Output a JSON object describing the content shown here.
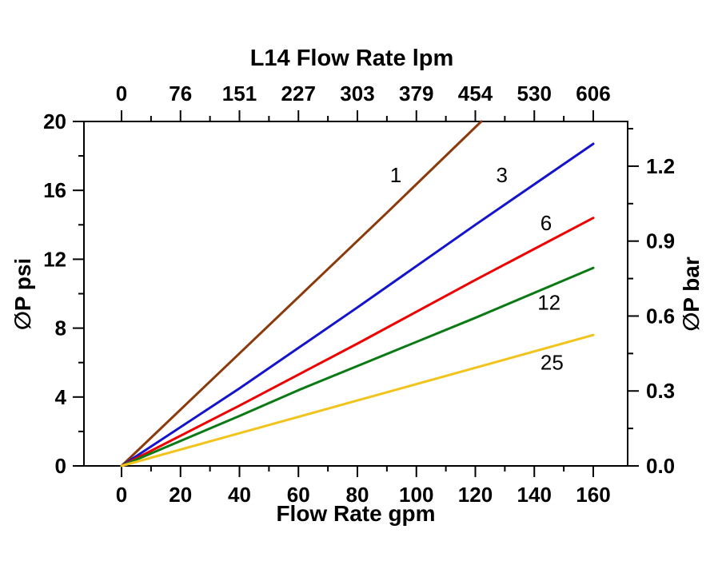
{
  "chart_data": {
    "type": "line",
    "title": "L14  Flow Rate lpm",
    "xlabel_bottom": "Flow Rate gpm",
    "ylabel_left": "∅P psi",
    "ylabel_right": "∅P bar",
    "grid": false,
    "legend": "inline-labels-on-lines",
    "x_axis_bottom": {
      "unit": "gpm",
      "range": [
        0,
        160
      ],
      "ticks": [
        0,
        20,
        40,
        60,
        80,
        100,
        120,
        140,
        160
      ],
      "minor_ticks": [
        10,
        30,
        50,
        70,
        90,
        110,
        130,
        150
      ]
    },
    "x_axis_top": {
      "unit": "lpm",
      "tick_labels": [
        "0",
        "76",
        "151",
        "227",
        "303",
        "379",
        "454",
        "530",
        "606"
      ],
      "tick_positions_gpm": [
        0,
        20,
        40,
        60,
        80,
        100,
        120,
        140,
        160
      ]
    },
    "y_axis_left": {
      "unit": "psi",
      "range": [
        0,
        20
      ],
      "ticks": [
        0,
        4,
        8,
        12,
        16,
        20
      ],
      "minor_ticks": [
        2,
        6,
        10,
        14,
        18
      ]
    },
    "y_axis_right": {
      "unit": "bar",
      "tick_labels": [
        "0.0",
        "0.3",
        "0.6",
        "0.9",
        "1.2"
      ],
      "tick_values_bar": [
        0.0,
        0.3,
        0.6,
        0.9,
        1.2
      ],
      "minor_ticks_bar": [
        0.15,
        0.45,
        0.75,
        1.05,
        1.35
      ],
      "psi_per_bar": 14.504
    },
    "series": [
      {
        "name": "1",
        "color": "#8B3A0B",
        "x": [
          0,
          30,
          60,
          90,
          122
        ],
        "y": [
          0,
          4.9,
          9.8,
          14.7,
          20.0
        ],
        "label": "1",
        "label_at": {
          "x": 93,
          "y": 16.9
        }
      },
      {
        "name": "3",
        "color": "#1414CC",
        "x": [
          0,
          40,
          80,
          120,
          160
        ],
        "y": [
          0,
          4.5,
          9.2,
          14.0,
          18.7
        ],
        "label": "3",
        "label_at": {
          "x": 129,
          "y": 16.9
        }
      },
      {
        "name": "6",
        "color": "#EE0000",
        "x": [
          0,
          40,
          80,
          120,
          160
        ],
        "y": [
          0,
          3.5,
          7.1,
          10.8,
          14.4
        ],
        "label": "6",
        "label_at": {
          "x": 144,
          "y": 14.1
        }
      },
      {
        "name": "12",
        "color": "#0B7A14",
        "x": [
          0,
          40,
          60,
          80,
          120,
          160
        ],
        "y": [
          0,
          2.9,
          4.4,
          5.8,
          8.6,
          11.5
        ],
        "label": "12",
        "label_at": {
          "x": 145,
          "y": 9.5
        }
      },
      {
        "name": "25",
        "color": "#F2C41B",
        "x": [
          0,
          40,
          80,
          120,
          160
        ],
        "y": [
          0,
          1.9,
          3.8,
          5.7,
          7.6
        ],
        "label": "25",
        "label_at": {
          "x": 146,
          "y": 6.0
        }
      }
    ]
  }
}
